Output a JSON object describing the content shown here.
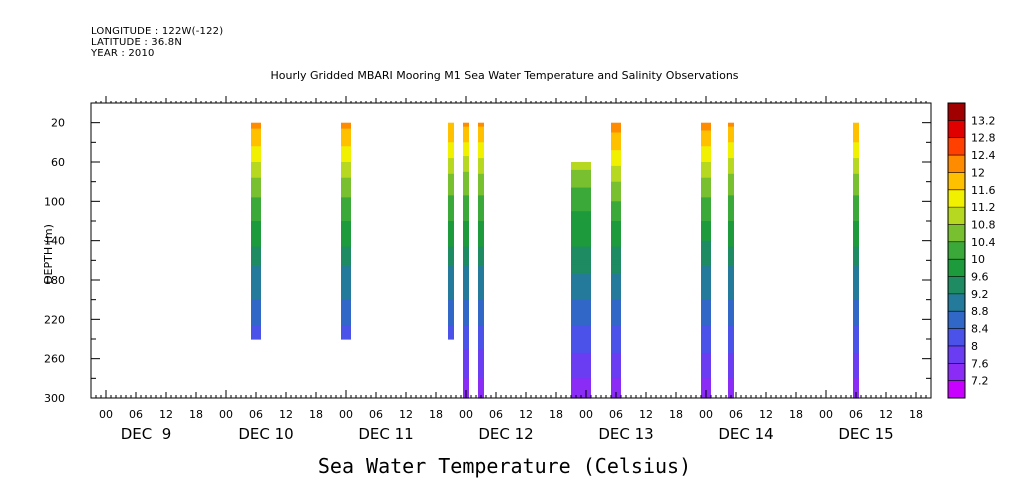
{
  "header": {
    "longitude": "LONGITUDE : 122W(-122)",
    "latitude": "LATITUDE : 36.8N",
    "year": "YEAR : 2010"
  },
  "footer_label": "Sea Water Temperature (Celsius)",
  "chart_data": {
    "type": "heatmap",
    "title": "Hourly Gridded MBARI Mooring M1 Sea Water Temperature and Salinity Observations",
    "xlabel": "",
    "ylabel": "DEPTH (m)",
    "ylim": [
      300,
      0
    ],
    "yticks": [
      20,
      60,
      100,
      140,
      180,
      220,
      260,
      300
    ],
    "x_hour_ticks": [
      "00",
      "06",
      "12",
      "18",
      "00",
      "06",
      "12",
      "18",
      "00",
      "06",
      "12",
      "18",
      "00",
      "06",
      "12",
      "18",
      "00",
      "06",
      "12",
      "18",
      "00",
      "06",
      "12",
      "18",
      "00",
      "06",
      "12",
      "18"
    ],
    "x_day_labels": [
      "DEC  9",
      "DEC 10",
      "DEC 11",
      "DEC 12",
      "DEC 13",
      "DEC 14",
      "DEC 15"
    ],
    "x_range_hours": [
      -3,
      165
    ],
    "colorbar": {
      "levels": [
        7.2,
        7.6,
        8,
        8.4,
        8.8,
        9.2,
        9.6,
        10,
        10.4,
        10.8,
        11.2,
        11.6,
        12,
        12.4,
        12.8,
        13.2
      ],
      "colors": [
        "#c800ff",
        "#8a2cf5",
        "#6a3df2",
        "#4a52ea",
        "#3168c7",
        "#247a9a",
        "#1f8b62",
        "#1c9a3c",
        "#3aa93a",
        "#78c030",
        "#b6d820",
        "#f0f000",
        "#ffc000",
        "#ff8c00",
        "#ff4000",
        "#e00000",
        "#a00000"
      ]
    },
    "profile_depths": [
      20,
      40,
      60,
      80,
      100,
      120,
      140,
      160,
      180,
      200,
      220,
      240,
      260,
      280,
      300
    ],
    "profiles": [
      {
        "hour": 30,
        "width_hours": 2,
        "temps": [
          12.1,
          11.7,
          11.2,
          10.7,
          10.3,
          10.0,
          9.7,
          9.3,
          9.0,
          8.8,
          8.5,
          8.2,
          null,
          null,
          null
        ]
      },
      {
        "hour": 48,
        "width_hours": 2,
        "temps": [
          12.1,
          11.7,
          11.2,
          10.7,
          10.3,
          10.0,
          9.7,
          9.3,
          9.0,
          8.8,
          8.5,
          8.2,
          null,
          null,
          null
        ]
      },
      {
        "hour": 69,
        "width_hours": 1,
        "temps": [
          12.0,
          11.6,
          11.1,
          10.6,
          10.3,
          10.0,
          9.7,
          9.3,
          9.0,
          8.8,
          8.5,
          8.2,
          null,
          null,
          null
        ]
      },
      {
        "hour": 72,
        "width_hours": 1,
        "temps": [
          12.1,
          11.6,
          11.0,
          10.6,
          10.3,
          10.0,
          9.7,
          9.3,
          9.0,
          8.8,
          8.5,
          8.1,
          7.9,
          7.6,
          7.3
        ]
      },
      {
        "hour": 75,
        "width_hours": 1,
        "temps": [
          12.1,
          11.6,
          11.1,
          10.6,
          10.3,
          10.0,
          9.7,
          9.3,
          9.0,
          8.8,
          8.5,
          8.1,
          7.9,
          7.6,
          7.3
        ]
      },
      {
        "hour": 95,
        "width_hours": 4,
        "temps": [
          null,
          null,
          11.0,
          10.5,
          10.1,
          9.9,
          9.7,
          9.4,
          9.1,
          8.8,
          8.5,
          8.2,
          7.9,
          7.6,
          7.3
        ]
      },
      {
        "hour": 102,
        "width_hours": 2,
        "temps": [
          12.2,
          11.8,
          11.3,
          10.8,
          10.4,
          10.0,
          9.7,
          9.4,
          9.1,
          8.8,
          8.5,
          8.2,
          7.9,
          7.6,
          7.3
        ]
      },
      {
        "hour": 120,
        "width_hours": 2,
        "temps": [
          12.2,
          11.7,
          11.2,
          10.7,
          10.3,
          10.0,
          9.6,
          9.3,
          9.0,
          8.8,
          8.5,
          8.2,
          7.9,
          7.6,
          7.3
        ]
      },
      {
        "hour": 125,
        "width_hours": 1,
        "temps": [
          12.1,
          11.6,
          11.1,
          10.6,
          10.3,
          10.0,
          9.7,
          9.3,
          9.0,
          8.8,
          8.5,
          8.2,
          7.9,
          7.6,
          7.3
        ]
      },
      {
        "hour": 150,
        "width_hours": 1,
        "temps": [
          12.0,
          11.6,
          11.1,
          10.6,
          10.3,
          10.0,
          9.7,
          9.3,
          9.0,
          8.8,
          8.5,
          8.2,
          7.9,
          7.6,
          7.3
        ]
      }
    ]
  }
}
